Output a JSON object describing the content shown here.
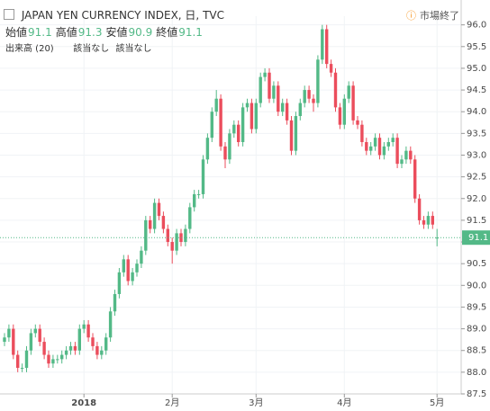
{
  "chart_data": {
    "type": "candlestick",
    "title": "JAPAN YEN CURRENCY INDEX, 日, TVC",
    "status": "市場終了",
    "ohlc_legend": [
      {
        "label": "始値",
        "value": 91.1
      },
      {
        "label": "高値",
        "value": 91.3
      },
      {
        "label": "安値",
        "value": 90.9
      },
      {
        "label": "終値",
        "value": 91.1
      }
    ],
    "volume_label": "出来高 (20)",
    "volume_values": [
      "該当なし",
      "該当なし"
    ],
    "last_price": 91.1,
    "up_color": "#53b987",
    "down_color": "#eb4d5c",
    "open": [
      88.7,
      88.8,
      89.0,
      88.4,
      88.1,
      88.1,
      88.5,
      88.9,
      89.0,
      88.7,
      88.4,
      88.2,
      88.3,
      88.3,
      88.4,
      88.5,
      88.6,
      88.5,
      89.0,
      89.1,
      88.8,
      88.6,
      88.4,
      88.5,
      88.8,
      89.4,
      89.8,
      90.3,
      90.6,
      90.1,
      90.3,
      90.5,
      90.8,
      91.5,
      91.3,
      91.9,
      91.6,
      91.3,
      91.0,
      90.8,
      91.2,
      91.0,
      91.3,
      91.8,
      92.1,
      92.1,
      92.9,
      93.4,
      94.0,
      94.3,
      93.2,
      92.9,
      93.5,
      93.7,
      93.3,
      94.1,
      94.2,
      93.6,
      94.2,
      94.8,
      94.9,
      94.3,
      94.6,
      94.0,
      94.2,
      93.8,
      93.1,
      93.9,
      94.2,
      94.5,
      94.3,
      94.2,
      95.2,
      95.9,
      95.1,
      94.9,
      94.1,
      93.7,
      94.3,
      94.6,
      93.8,
      93.7,
      93.3,
      93.1,
      93.2,
      93.4,
      93.0,
      93.2,
      93.3,
      93.4,
      92.8,
      92.9,
      93.1,
      92.9,
      92.0,
      91.5,
      91.4,
      91.6,
      91.1
    ],
    "high": [
      88.9,
      89.1,
      89.1,
      88.5,
      88.2,
      88.6,
      89.0,
      89.1,
      89.1,
      88.8,
      88.5,
      88.4,
      88.4,
      88.5,
      88.6,
      88.7,
      88.7,
      89.1,
      89.2,
      89.2,
      88.9,
      88.7,
      88.6,
      88.9,
      89.5,
      89.9,
      90.4,
      90.7,
      90.7,
      90.4,
      90.6,
      90.9,
      91.6,
      91.6,
      92.0,
      92.0,
      91.7,
      91.4,
      91.1,
      91.3,
      91.3,
      91.4,
      91.9,
      92.2,
      92.2,
      93.0,
      93.5,
      94.1,
      94.5,
      94.4,
      93.3,
      93.6,
      93.8,
      93.8,
      94.2,
      94.3,
      94.3,
      94.3,
      94.9,
      95.0,
      95.0,
      94.7,
      94.7,
      94.3,
      94.3,
      93.9,
      94.0,
      94.3,
      94.6,
      94.6,
      94.4,
      95.3,
      96.0,
      96.0,
      95.2,
      95.0,
      94.2,
      94.4,
      94.7,
      94.7,
      93.9,
      93.8,
      93.4,
      93.3,
      93.5,
      93.5,
      93.3,
      93.4,
      93.5,
      93.5,
      93.0,
      93.2,
      93.2,
      93.0,
      92.1,
      91.6,
      91.7,
      91.7,
      91.3
    ],
    "low": [
      88.6,
      88.7,
      88.3,
      88.0,
      88.0,
      88.0,
      88.4,
      88.8,
      88.6,
      88.3,
      88.1,
      88.1,
      88.2,
      88.2,
      88.3,
      88.4,
      88.4,
      88.4,
      88.9,
      88.7,
      88.5,
      88.3,
      88.3,
      88.4,
      88.7,
      89.3,
      89.7,
      90.2,
      90.0,
      90.0,
      90.2,
      90.4,
      90.7,
      91.2,
      91.2,
      91.5,
      91.2,
      90.9,
      90.5,
      90.7,
      90.9,
      90.9,
      91.2,
      91.7,
      92.0,
      92.0,
      92.8,
      93.3,
      93.9,
      93.1,
      92.7,
      92.8,
      93.4,
      93.2,
      93.2,
      94.0,
      93.5,
      93.5,
      94.1,
      94.7,
      94.2,
      94.2,
      93.9,
      93.9,
      93.7,
      93.0,
      93.0,
      93.8,
      94.1,
      94.2,
      94.0,
      94.1,
      95.1,
      95.0,
      94.8,
      94.0,
      93.6,
      93.6,
      94.2,
      93.7,
      93.6,
      93.2,
      93.0,
      93.0,
      93.1,
      92.9,
      92.9,
      93.1,
      93.2,
      92.7,
      92.7,
      92.8,
      92.8,
      91.9,
      91.4,
      91.3,
      91.3,
      91.3,
      90.9
    ],
    "close": [
      88.8,
      89.0,
      88.4,
      88.1,
      88.1,
      88.5,
      88.9,
      89.0,
      88.7,
      88.4,
      88.2,
      88.3,
      88.3,
      88.4,
      88.5,
      88.6,
      88.5,
      89.0,
      89.1,
      88.8,
      88.6,
      88.4,
      88.5,
      88.8,
      89.4,
      89.8,
      90.3,
      90.6,
      90.1,
      90.3,
      90.5,
      90.8,
      91.5,
      91.3,
      91.9,
      91.6,
      91.3,
      91.0,
      90.8,
      91.2,
      91.0,
      91.3,
      91.8,
      92.1,
      92.1,
      92.9,
      93.4,
      94.0,
      94.3,
      93.2,
      92.9,
      93.5,
      93.7,
      93.3,
      94.1,
      94.2,
      93.6,
      94.2,
      94.8,
      94.9,
      94.3,
      94.6,
      94.0,
      94.2,
      93.8,
      93.1,
      93.9,
      94.2,
      94.5,
      94.3,
      94.2,
      95.2,
      95.9,
      95.1,
      94.9,
      94.1,
      93.7,
      94.3,
      94.6,
      93.8,
      93.7,
      93.3,
      93.1,
      93.2,
      93.4,
      93.0,
      93.2,
      93.3,
      93.4,
      92.8,
      92.9,
      93.1,
      92.9,
      92.0,
      91.5,
      91.4,
      91.6,
      91.4,
      91.1
    ],
    "xticks": [
      {
        "value": 18,
        "label": "2018"
      },
      {
        "value": 38,
        "label": "2月"
      },
      {
        "value": 57,
        "label": "3月"
      },
      {
        "value": 77,
        "label": "4月"
      },
      {
        "value": 98,
        "label": "5月"
      }
    ],
    "ylim": [
      87.5,
      96.2
    ],
    "yticks": [
      87.5,
      {
        "value": 88,
        "label": "88.0"
      },
      88.5,
      {
        "value": 89,
        "label": "89.0"
      },
      89.5,
      {
        "value": 90,
        "label": "90.0"
      },
      90.5,
      {
        "value": 91,
        "label": "91.0"
      },
      91.5,
      {
        "value": 92,
        "label": "92.0"
      },
      92.5,
      {
        "value": 93,
        "label": "93.0"
      },
      93.5,
      {
        "value": 94,
        "label": "94.0"
      },
      94.5,
      {
        "value": 95,
        "label": "95.0"
      },
      95.5,
      {
        "value": 96,
        "label": "96.0"
      }
    ],
    "grid": true
  }
}
